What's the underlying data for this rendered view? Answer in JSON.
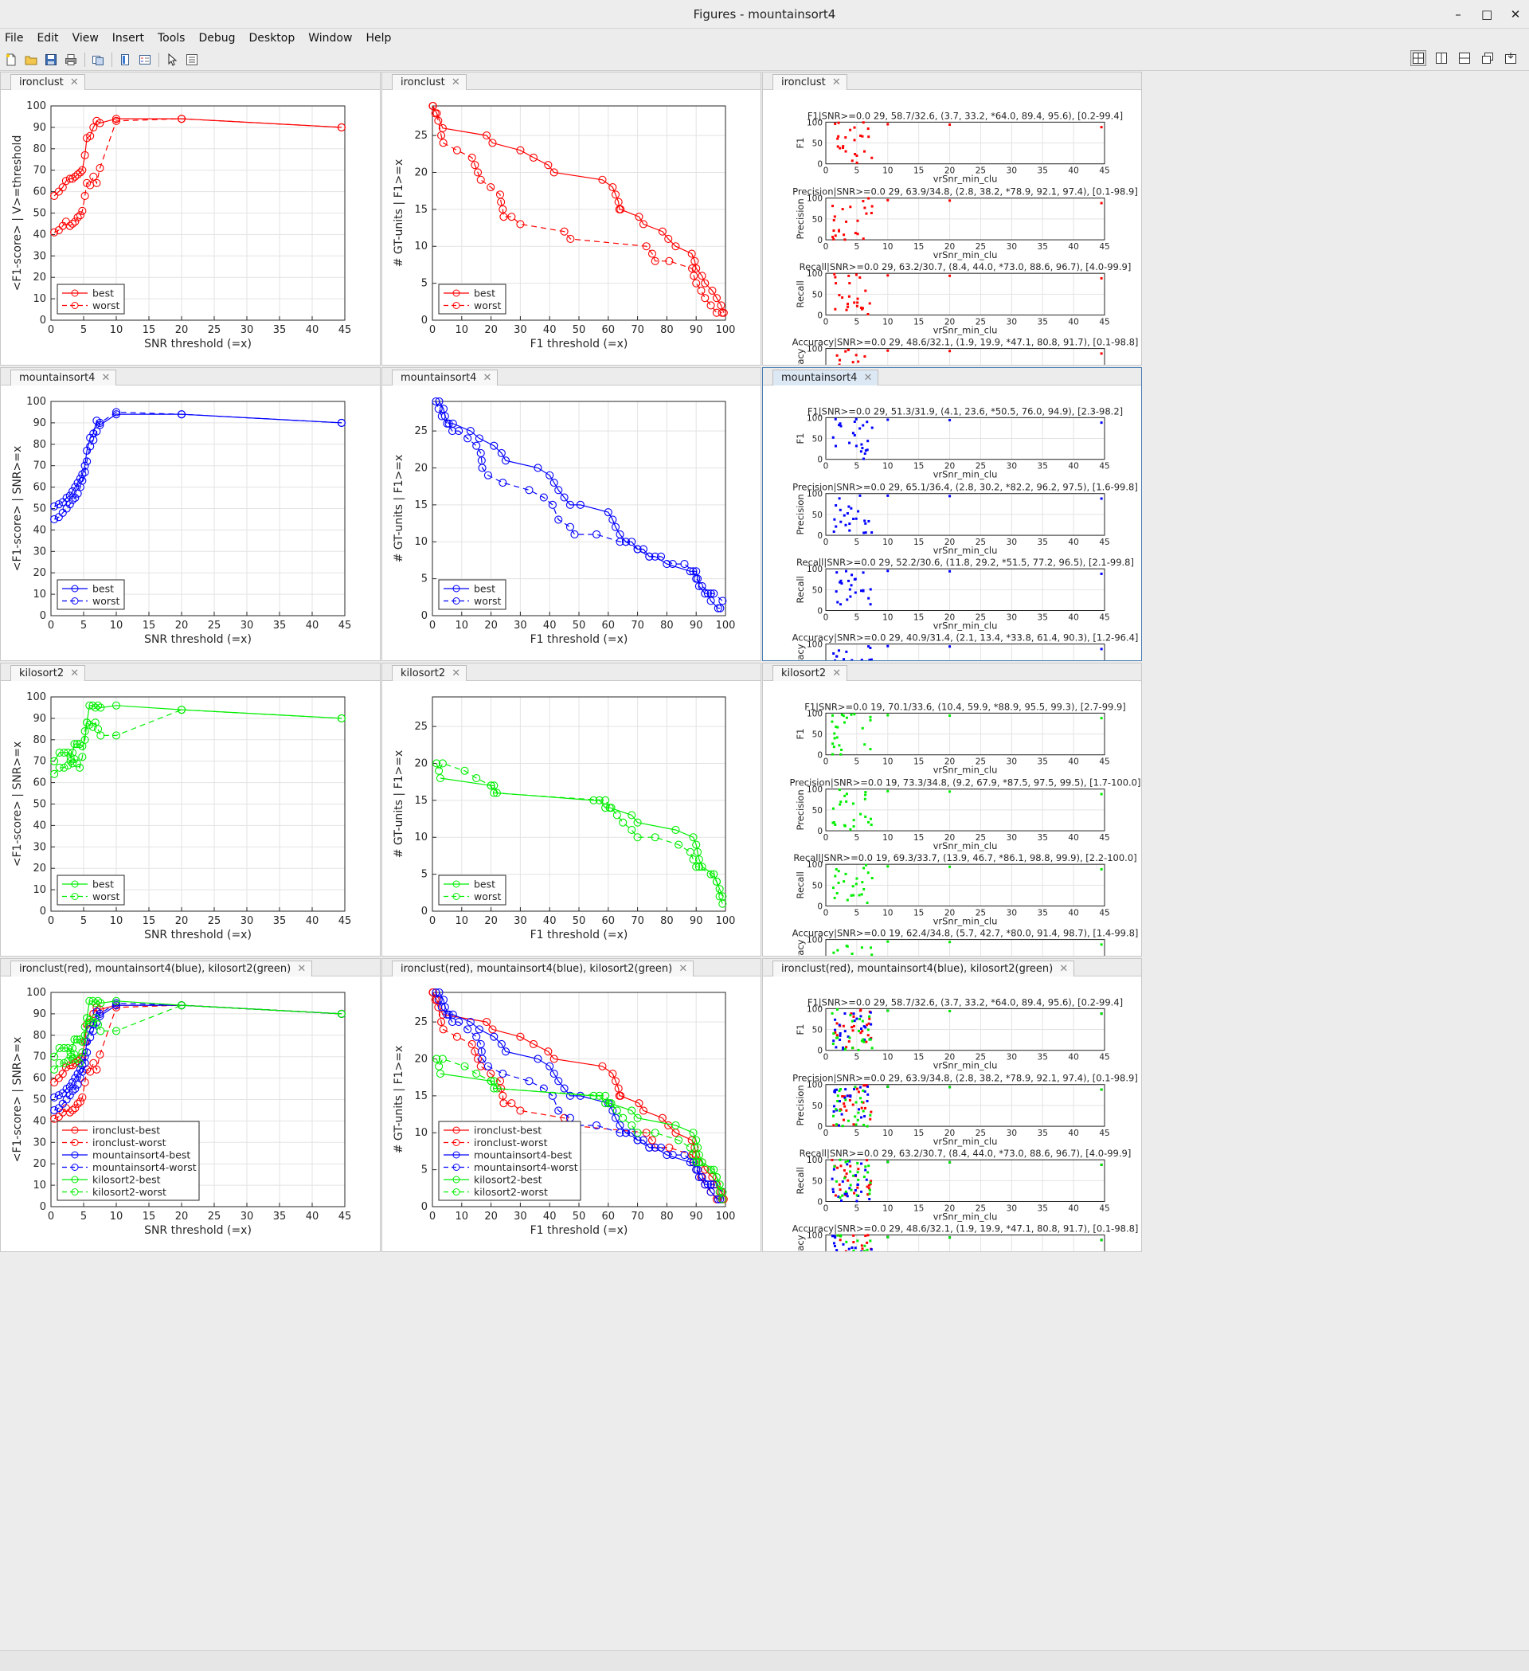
{
  "window": {
    "title": "Figures - mountainsort4",
    "controls": {
      "minimize": "–",
      "maximize": "□",
      "close": "✕"
    }
  },
  "menu": [
    "File",
    "Edit",
    "View",
    "Insert",
    "Tools",
    "Debug",
    "Desktop",
    "Window",
    "Help"
  ],
  "toolbar": {
    "icons": [
      "new-figure-icon",
      "open-icon",
      "save-icon",
      "print-icon",
      "link-icon",
      "colorbar-icon",
      "legend-icon",
      "pointer-icon",
      "property-editor-icon"
    ],
    "layout_icons": [
      "tile-grid-icon",
      "left-right-icon",
      "top-bottom-icon",
      "float-icon",
      "dock-icon"
    ]
  },
  "colors": {
    "ironclust": "#ff0000",
    "mountainsort4": "#0000ff",
    "kilosort2": "#00ee00",
    "grid": "#e3e3e3"
  },
  "tabs": {
    "row1": [
      "ironclust",
      "ironclust",
      "ironclust"
    ],
    "row2": [
      "mountainsort4",
      "mountainsort4",
      "mountainsort4"
    ],
    "row3": [
      "kilosort2",
      "kilosort2",
      "kilosort2"
    ],
    "row4": [
      "ironclust(red), mountainsort4(blue), kilosort2(green)",
      "ironclust(red), mountainsort4(blue), kilosort2(green)",
      "ironclust(red), mountainsort4(blue), kilosort2(green)"
    ]
  },
  "chart_data": [
    {
      "id": "snr-ironclust",
      "type": "line",
      "xlabel": "SNR threshold (=x)",
      "ylabel": "<F1-score> | V>=threshold",
      "xlim": [
        0,
        45
      ],
      "ylim": [
        0,
        100
      ],
      "series": [
        {
          "name": "best",
          "color": "#ff0000",
          "style": "solid",
          "x": [
            0.5,
            1.2,
            1.8,
            2.3,
            2.9,
            3.3,
            3.7,
            4.1,
            4.5,
            4.8,
            5.2,
            5.5,
            6,
            6.5,
            7,
            7.5,
            10,
            20,
            44.5
          ],
          "y": [
            58,
            60,
            62,
            65,
            66,
            66,
            67,
            68,
            69,
            70,
            77,
            85,
            86,
            90,
            93,
            92,
            94,
            94,
            90
          ]
        },
        {
          "name": "worst",
          "color": "#ff0000",
          "style": "dashed",
          "x": [
            0.5,
            1.2,
            1.8,
            2.3,
            2.9,
            3.3,
            3.7,
            4.1,
            4.5,
            4.8,
            5.2,
            5.5,
            6,
            6.5,
            7,
            7.5,
            10,
            20,
            44.5
          ],
          "y": [
            41,
            42,
            44,
            46,
            44,
            45,
            46,
            48,
            49,
            51,
            58,
            64,
            63,
            67,
            64,
            71,
            93,
            94,
            90
          ]
        }
      ]
    },
    {
      "id": "f1-ironclust",
      "type": "line",
      "xlabel": "F1 threshold (=x)",
      "ylabel": "# GT-units | F1>=x",
      "xlim": [
        0,
        100
      ],
      "ylim": [
        0,
        29
      ],
      "series": [
        {
          "name": "best",
          "color": "#ff0000",
          "style": "solid",
          "x": [
            0.2,
            1.5,
            3.5,
            18.5,
            20.5,
            30,
            34.5,
            39.5,
            41.5,
            58,
            61.5,
            62.5,
            63.5,
            63.8,
            64.2,
            70.5,
            72,
            78.5,
            80.5,
            83,
            88.5,
            89.5,
            90,
            92,
            93,
            95.5,
            97,
            98.5,
            99.4
          ],
          "y": [
            29,
            28,
            26,
            25,
            24,
            23,
            22,
            21,
            20,
            19,
            18,
            17,
            16,
            15,
            15,
            14,
            13,
            12,
            11,
            10,
            9,
            8,
            7,
            6,
            5,
            4,
            3,
            2,
            1
          ]
        },
        {
          "name": "worst",
          "color": "#ff0000",
          "style": "dashed",
          "x": [
            0.1,
            1,
            2,
            3,
            3.7,
            8.4,
            13.5,
            14.5,
            15.5,
            16.5,
            19.9,
            23.1,
            23.4,
            24,
            24.3,
            27,
            30,
            45,
            47.1,
            73,
            75,
            76,
            80.8,
            88.6,
            89.2,
            90,
            91.7,
            93,
            95,
            97,
            98.8
          ],
          "y": [
            29,
            28,
            27,
            25,
            24,
            23,
            22,
            21,
            20,
            19,
            18,
            17,
            16,
            15,
            14,
            14,
            13,
            12,
            11,
            10,
            9,
            8,
            8,
            7,
            6,
            5,
            4,
            3,
            2,
            1,
            1
          ]
        }
      ]
    },
    {
      "id": "scatter-ironclust",
      "type": "scatter",
      "color": "#ff0000",
      "xlabel": "vrSnr_min_clu",
      "xlim": [
        0,
        45
      ],
      "ylim": [
        0,
        100
      ],
      "panels": [
        {
          "title": "F1|SNR>=0.0  29, 58.7/32.6, (3.7, 33.2, *64.0, 89.4, 95.6), [0.2-99.4]",
          "ylabel": "F1"
        },
        {
          "title": "Precision|SNR>=0.0  29, 63.9/34.8, (2.8, 38.2, *78.9, 92.1, 97.4), [0.1-98.9]",
          "ylabel": "Precision"
        },
        {
          "title": "Recall|SNR>=0.0  29, 63.2/30.7, (8.4, 44.0, *73.0, 88.6, 96.7), [4.0-99.9]",
          "ylabel": "Recall"
        },
        {
          "title": "Accuracy|SNR>=0.0  29, 48.6/32.1, (1.9, 19.9, *47.1, 80.8, 91.7), [0.1-98.8]",
          "ylabel": "Accuracy"
        }
      ]
    },
    {
      "id": "snr-mountainsort4",
      "type": "line",
      "xlabel": "SNR threshold (=x)",
      "ylabel": "<F1-score> | SNR>=x",
      "xlim": [
        0,
        45
      ],
      "ylim": [
        0,
        100
      ],
      "series": [
        {
          "name": "best",
          "color": "#0000ff",
          "style": "solid",
          "x": [
            0.5,
            1.2,
            1.8,
            2.4,
            2.9,
            3.3,
            3.7,
            4.1,
            4.5,
            4.8,
            5.2,
            5.5,
            6,
            6.5,
            7,
            7.5,
            10,
            20,
            44.5
          ],
          "y": [
            51,
            52,
            53,
            55,
            56,
            58,
            60,
            62,
            64,
            66,
            70,
            77,
            83,
            85,
            91,
            89,
            94,
            94,
            90
          ]
        },
        {
          "name": "worst",
          "color": "#0000ff",
          "style": "dashed",
          "x": [
            0.5,
            1.2,
            1.8,
            2.4,
            2.9,
            3.3,
            3.7,
            4.1,
            4.5,
            4.8,
            5.2,
            5.5,
            6,
            6.5,
            7,
            7.5,
            10,
            20,
            44.5
          ],
          "y": [
            45,
            46,
            48,
            50,
            52,
            54,
            55,
            57,
            60,
            63,
            67,
            72,
            79,
            82,
            86,
            90,
            95,
            94,
            90
          ]
        }
      ]
    },
    {
      "id": "f1-mountainsort4",
      "type": "line",
      "xlabel": "F1 threshold (=x)",
      "ylabel": "# GT-units | F1>=x",
      "xlim": [
        0,
        100
      ],
      "ylim": [
        0,
        29
      ],
      "series": [
        {
          "name": "best",
          "color": "#0000ff",
          "style": "solid",
          "x": [
            2.3,
            3.8,
            4.3,
            5.6,
            7,
            13,
            16,
            21,
            23.6,
            25,
            36,
            40,
            41.5,
            43,
            45,
            47,
            50.5,
            60,
            61.5,
            62.5,
            64,
            66,
            68,
            70,
            72,
            74,
            76,
            80,
            88,
            90,
            90.5,
            91,
            93,
            94,
            95,
            97.5,
            98.2
          ],
          "y": [
            29,
            28,
            27,
            26,
            26,
            25,
            24,
            23,
            22,
            21,
            20,
            19,
            18,
            17,
            16,
            15,
            15,
            14,
            13,
            12,
            11,
            10,
            10,
            9,
            9,
            8,
            8,
            7,
            6,
            6,
            5,
            4,
            3,
            3,
            2,
            1,
            1
          ]
        },
        {
          "name": "worst",
          "color": "#0000ff",
          "style": "dashed",
          "x": [
            1.2,
            2.1,
            3.2,
            5,
            6.8,
            9,
            12,
            15,
            16.5,
            16.8,
            17,
            19,
            24,
            33,
            38,
            41,
            43,
            47,
            48.5,
            56,
            64,
            66,
            70,
            74,
            78,
            82,
            86,
            89,
            90,
            92,
            95,
            96,
            99
          ],
          "y": [
            29,
            28,
            27,
            26,
            25,
            25,
            24,
            23,
            22,
            21,
            20,
            19,
            18,
            17,
            16,
            15,
            13,
            12,
            11,
            11,
            10,
            10,
            9,
            8,
            8,
            7,
            7,
            6,
            5,
            4,
            3,
            3,
            2
          ]
        }
      ]
    },
    {
      "id": "scatter-mountainsort4",
      "type": "scatter",
      "color": "#0000ff",
      "xlabel": "vrSnr_min_clu",
      "xlim": [
        0,
        45
      ],
      "ylim": [
        0,
        100
      ],
      "panels": [
        {
          "title": "F1|SNR>=0.0  29, 51.3/31.9, (4.1, 23.6, *50.5, 76.0, 94.9), [2.3-98.2]",
          "ylabel": "F1"
        },
        {
          "title": "Precision|SNR>=0.0  29, 65.1/36.4, (2.8, 30.2, *82.2, 96.2, 97.5), [1.6-99.8]",
          "ylabel": "Precision"
        },
        {
          "title": "Recall|SNR>=0.0  29, 52.2/30.6, (11.8, 29.2, *51.5, 77.2, 96.5), [2.1-99.8]",
          "ylabel": "Recall"
        },
        {
          "title": "Accuracy|SNR>=0.0  29, 40.9/31.4, (2.1, 13.4, *33.8, 61.4, 90.3), [1.2-96.4]",
          "ylabel": "Accuracy"
        }
      ]
    },
    {
      "id": "snr-kilosort2",
      "type": "line",
      "xlabel": "SNR threshold (=x)",
      "ylabel": "<F1-score> | SNR>=x",
      "xlim": [
        0,
        45
      ],
      "ylim": [
        0,
        100
      ],
      "series": [
        {
          "name": "best",
          "color": "#00ee00",
          "style": "solid",
          "x": [
            0.5,
            1.3,
            2,
            2.6,
            3,
            3.3,
            3.6,
            4,
            4.4,
            4.8,
            5.2,
            5.5,
            5.9,
            6.4,
            6.8,
            7.2,
            7.6,
            10,
            20,
            44.5
          ],
          "y": [
            70,
            74,
            74,
            74,
            72,
            74,
            78,
            78,
            78,
            77,
            80,
            88,
            96,
            96,
            95,
            96,
            95,
            96,
            94,
            90
          ]
        },
        {
          "name": "worst",
          "color": "#00ee00",
          "style": "dashed",
          "x": [
            0.5,
            1.3,
            2,
            2.6,
            3,
            3.3,
            3.6,
            4,
            4.4,
            4.8,
            5.2,
            5.5,
            5.9,
            6.4,
            6.8,
            7.2,
            7.6,
            10,
            20,
            44.5
          ],
          "y": [
            64,
            67,
            67,
            68,
            70,
            69,
            71,
            69,
            67,
            72,
            84,
            88,
            87,
            86,
            88,
            85,
            82,
            82,
            94,
            90
          ]
        }
      ]
    },
    {
      "id": "f1-kilosort2",
      "type": "line",
      "xlabel": "F1 threshold (=x)",
      "ylabel": "# GT-units | F1>=x",
      "xlim": [
        0,
        100
      ],
      "ylim": [
        0,
        29
      ],
      "series": [
        {
          "name": "best",
          "color": "#00ee00",
          "style": "solid",
          "x": [
            2.7,
            20,
            21,
            22,
            55,
            57,
            59,
            60.5,
            68,
            70,
            83,
            89,
            90,
            90.5,
            91,
            92,
            96,
            97,
            98,
            99
          ],
          "y": [
            18,
            17,
            17,
            16,
            15,
            15,
            14,
            14,
            13,
            12,
            11,
            10,
            9,
            8,
            7,
            6,
            5,
            4,
            3,
            2
          ]
        },
        {
          "name": "worst",
          "color": "#00ee00",
          "style": "dashed",
          "x": [
            1.4,
            2.2,
            3.5,
            11,
            15,
            20,
            21,
            59,
            61,
            63,
            65,
            68,
            70,
            76,
            84,
            88,
            89,
            90,
            91,
            95,
            97,
            98,
            99
          ],
          "y": [
            20,
            19,
            20,
            19,
            18,
            17,
            16,
            15,
            14,
            13,
            12,
            11,
            10,
            10,
            9,
            8,
            7,
            6,
            6,
            5,
            4,
            2,
            1
          ]
        }
      ]
    },
    {
      "id": "scatter-kilosort2",
      "type": "scatter",
      "color": "#00ee00",
      "xlabel": "vrSnr_min_clu",
      "xlim": [
        0,
        45
      ],
      "ylim": [
        0,
        100
      ],
      "panels": [
        {
          "title": "F1|SNR>=0.0  19, 70.1/33.6, (10.4, 59.9, *88.9, 95.5, 99.3), [2.7-99.9]",
          "ylabel": "F1"
        },
        {
          "title": "Precision|SNR>=0.0  19, 73.3/34.8, (9.2, 67.9, *87.5, 97.5, 99.5), [1.7-100.0]",
          "ylabel": "Precision"
        },
        {
          "title": "Recall|SNR>=0.0  19, 69.3/33.7, (13.9, 46.7, *86.1, 98.8, 99.9), [2.2-100.0]",
          "ylabel": "Recall"
        },
        {
          "title": "Accuracy|SNR>=0.0  19, 62.4/34.8, (5.7, 42.7, *80.0, 91.4, 98.7), [1.4-99.8]",
          "ylabel": "Accuracy"
        }
      ]
    },
    {
      "id": "snr-all",
      "type": "line",
      "xlabel": "SNR threshold (=x)",
      "ylabel": "<F1-score> | SNR>=x",
      "xlim": [
        0,
        45
      ],
      "ylim": [
        0,
        100
      ],
      "legend": [
        "ironclust-best",
        "ironclust-worst",
        "mountainsort4-best",
        "mountainsort4-worst",
        "kilosort2-best",
        "kilosort2-worst"
      ]
    },
    {
      "id": "f1-all",
      "type": "line",
      "xlabel": "F1 threshold (=x)",
      "ylabel": "# GT-units | F1>=x",
      "xlim": [
        0,
        100
      ],
      "ylim": [
        0,
        29
      ],
      "legend": [
        "ironclust-best",
        "ironclust-worst",
        "mountainsort4-best",
        "mountainsort4-worst",
        "kilosort2-best",
        "kilosort2-worst"
      ]
    },
    {
      "id": "scatter-all",
      "type": "scatter",
      "xlabel": "vrSnr_min_clu",
      "xlim": [
        0,
        45
      ],
      "ylim": [
        0,
        100
      ],
      "panels": [
        {
          "title": "F1|SNR>=0.0  29, 58.7/32.6, (3.7, 33.2, *64.0, 89.4, 95.6), [0.2-99.4]",
          "ylabel": "F1"
        },
        {
          "title": "Precision|SNR>=0.0  29, 63.9/34.8, (2.8, 38.2, *78.9, 92.1, 97.4), [0.1-98.9]",
          "ylabel": "Precision"
        },
        {
          "title": "Recall|SNR>=0.0  29, 63.2/30.7, (8.4, 44.0, *73.0, 88.6, 96.7), [4.0-99.9]",
          "ylabel": "Recall"
        },
        {
          "title": "Accuracy|SNR>=0.0  29, 48.6/32.1, (1.9, 19.9, *47.1, 80.8, 91.7), [0.1-98.8]",
          "ylabel": "Accuracy"
        }
      ]
    }
  ]
}
